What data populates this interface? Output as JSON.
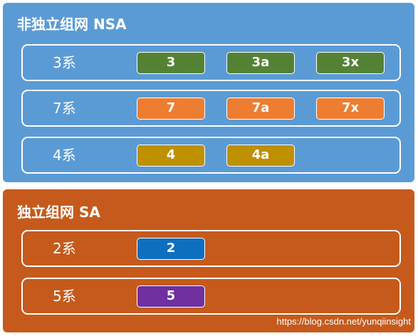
{
  "nsa": {
    "title": "非独立组网 NSA",
    "rows": [
      {
        "label": "3系",
        "options": [
          "3",
          "3a",
          "3x"
        ],
        "color": "#548235"
      },
      {
        "label": "7系",
        "options": [
          "7",
          "7a",
          "7x"
        ],
        "color": "#ed7d31"
      },
      {
        "label": "4系",
        "options": [
          "4",
          "4a"
        ],
        "color": "#bf9000"
      }
    ],
    "color": "#5b9bd5"
  },
  "sa": {
    "title": "独立组网 SA",
    "rows": [
      {
        "label": "2系",
        "options": [
          "2"
        ],
        "color": "#0e6fc1"
      },
      {
        "label": "5系",
        "options": [
          "5"
        ],
        "color": "#7030a0"
      }
    ],
    "color": "#c55a1c"
  },
  "watermark": "https://blog.csdn.net/yunqiinsight"
}
